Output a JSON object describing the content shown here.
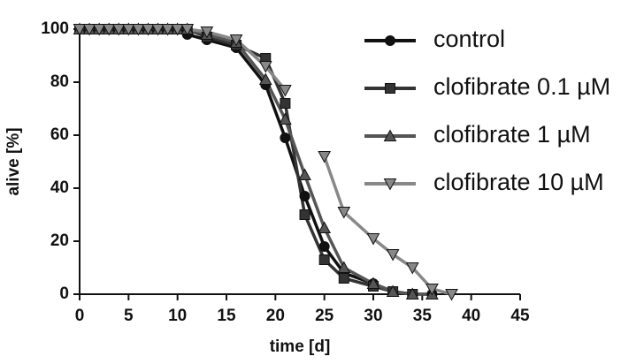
{
  "chart_data": {
    "type": "line",
    "x_label": "time [d]",
    "y_label": "alive [%]",
    "x": [
      0,
      1,
      2,
      3,
      4,
      5,
      6,
      7,
      8,
      9,
      10,
      11,
      13,
      16,
      19,
      21,
      23,
      25,
      27,
      30,
      32,
      34,
      36,
      38
    ],
    "series": [
      {
        "name": "control",
        "color": "#111111",
        "marker": "circle",
        "values": [
          100,
          100,
          100,
          100,
          100,
          100,
          100,
          100,
          100,
          100,
          100,
          98,
          96,
          93,
          79,
          59,
          37,
          18,
          8,
          4,
          1,
          0,
          0,
          null
        ]
      },
      {
        "name": "clofibrate 0.1 µM",
        "color": "#333333",
        "marker": "square",
        "values": [
          100,
          100,
          100,
          100,
          100,
          100,
          100,
          100,
          100,
          100,
          100,
          100,
          97,
          94,
          89,
          72,
          30,
          13,
          6,
          3,
          1,
          0,
          null,
          null
        ]
      },
      {
        "name": "clofibrate 1 µM",
        "color": "#555555",
        "marker": "triangle",
        "values": [
          100,
          100,
          100,
          100,
          100,
          100,
          100,
          100,
          100,
          100,
          100,
          100,
          98,
          95,
          81,
          66,
          45,
          25,
          10,
          4,
          1,
          0,
          0,
          null
        ]
      },
      {
        "name": "clofibrate 10 µM",
        "color": "#888888",
        "marker": "triangle-down",
        "values": [
          100,
          100,
          100,
          100,
          100,
          100,
          100,
          100,
          100,
          100,
          100,
          100,
          99,
          96,
          86,
          77,
          null,
          52,
          31,
          21,
          15,
          10,
          2,
          0
        ]
      }
    ],
    "xlim": [
      0,
      45
    ],
    "xticks": [
      0,
      5,
      10,
      15,
      20,
      25,
      30,
      35,
      40,
      45
    ],
    "ylim": [
      0,
      100
    ],
    "yticks": [
      0,
      20,
      40,
      60,
      80,
      100
    ],
    "grid": false,
    "legend": "upper right"
  }
}
